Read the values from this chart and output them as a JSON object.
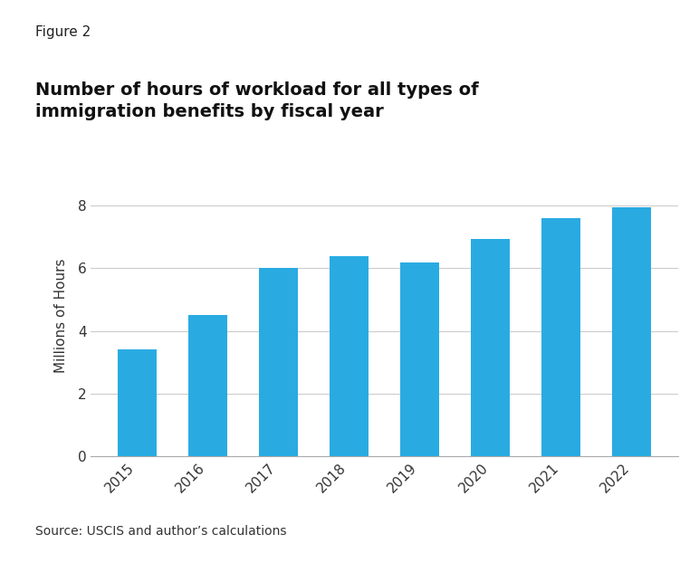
{
  "figure_label": "Figure 2",
  "title_line1": "Number of hours of workload for all types of",
  "title_line2": "immigration benefits by fiscal year",
  "categories": [
    "2015",
    "2016",
    "2017",
    "2018",
    "2019",
    "2020",
    "2021",
    "2022"
  ],
  "values": [
    3.4,
    4.5,
    6.0,
    6.4,
    6.2,
    6.95,
    7.6,
    7.95
  ],
  "bar_color": "#29ABE2",
  "ylabel": "Millions of Hours",
  "ylim": [
    0,
    9
  ],
  "yticks": [
    0,
    2,
    4,
    6,
    8
  ],
  "source_text": "Source: USCIS and author’s calculations",
  "background_color": "#ffffff",
  "grid_color": "#cccccc",
  "bar_width": 0.55,
  "fig_label_fontsize": 11,
  "title_fontsize": 14,
  "tick_fontsize": 11,
  "ylabel_fontsize": 11,
  "source_fontsize": 10
}
